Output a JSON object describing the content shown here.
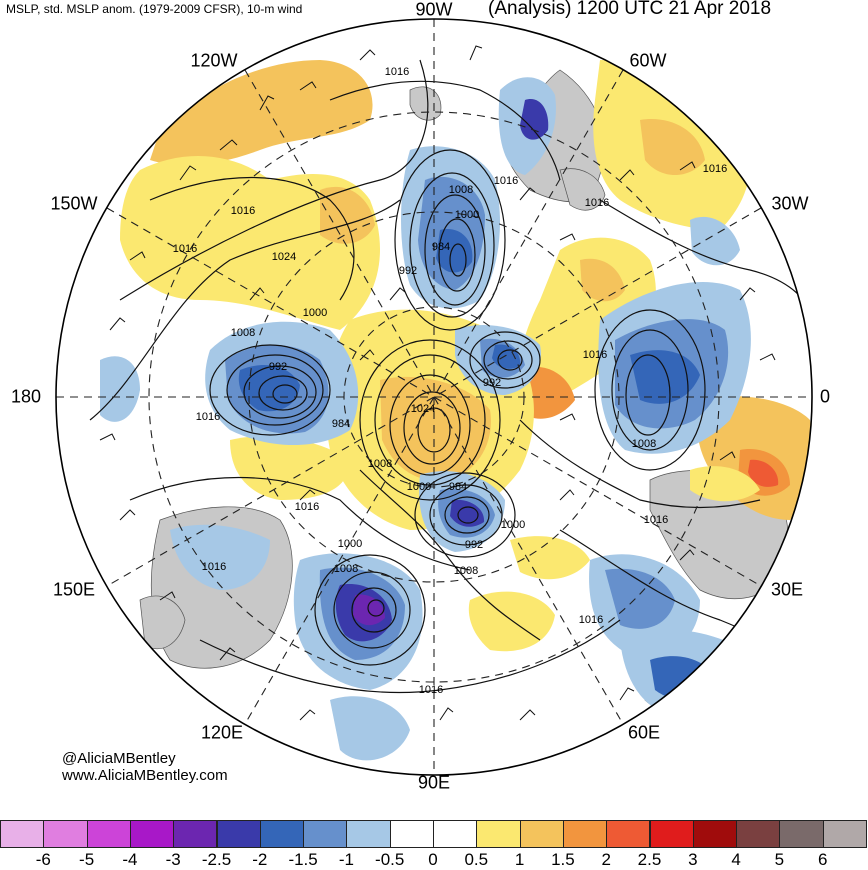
{
  "header": {
    "left_title": "MSLP, std. MSLP anom. (1979-2009 CFSR), 10-m wind",
    "right_title": "(Analysis) 1200 UTC 21 Apr 2018"
  },
  "credit": {
    "twitter": "@AliciaMBentley",
    "website": "www.AliciaMBentley.com"
  },
  "longitude_labels": {
    "top": "90W",
    "upper_left": "120W",
    "upper_right": "60W",
    "left_upper": "150W",
    "right_upper": "30W",
    "left": "180",
    "right": "0",
    "left_lower": "150E",
    "right_lower": "30E",
    "lower_left": "120E",
    "lower_right": "60E",
    "bottom": "90E"
  },
  "isobar_labels": [
    "1016",
    "1016",
    "1016",
    "1016",
    "1016",
    "1024",
    "1008",
    "1000",
    "984",
    "992",
    "1000",
    "1008",
    "992",
    "1016",
    "984",
    "1016",
    "1024",
    "992",
    "1016",
    "1008",
    "1008",
    "1000",
    "984",
    "992",
    "1000",
    "1016",
    "1016",
    "1000",
    "1008",
    "1016",
    "1008",
    "1016",
    "1016"
  ],
  "colorbar": {
    "ticks": [
      "-6",
      "-5",
      "-4",
      "-3",
      "-2.5",
      "-2",
      "-1.5",
      "-1",
      "-0.5",
      "0",
      "0.5",
      "1",
      "1.5",
      "2",
      "2.5",
      "3",
      "4",
      "5",
      "6"
    ],
    "colors": [
      "#e8b0e8",
      "#e07ee0",
      "#cc44d8",
      "#a818c8",
      "#6c26b0",
      "#3a3aaa",
      "#3466b8",
      "#6690cc",
      "#a6c8e6",
      "#ffffff",
      "#ffffff",
      "#fbe870",
      "#f4c35c",
      "#f2953e",
      "#ee5a34",
      "#e01c1c",
      "#a00c0c",
      "#7a4040",
      "#7a6a6a",
      "#b0a8a8"
    ]
  }
}
